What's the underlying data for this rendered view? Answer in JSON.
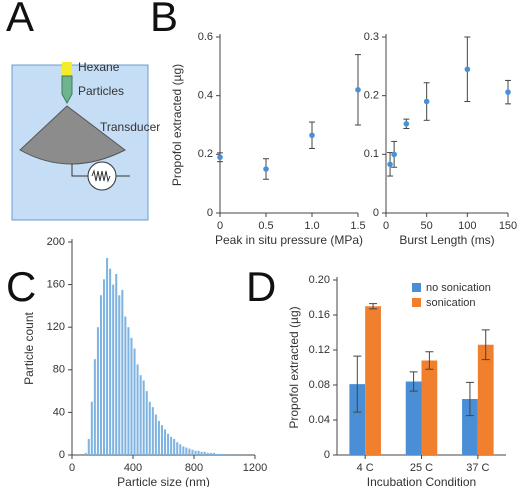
{
  "diagram": {
    "label": "A",
    "labels": [
      "Hexane",
      "Particles",
      "Transducer"
    ]
  },
  "chart_data": [
    {
      "type": "scatter",
      "label": "B",
      "ylabel": "Propofol extracted (µg)",
      "xlabel": "Peak in situ pressure (MPa)",
      "x": [
        0,
        0.5,
        1,
        1.5
      ],
      "values": [
        0.19,
        0.15,
        0.265,
        0.42
      ],
      "errors": [
        0.015,
        0.035,
        0.045,
        0.12
      ],
      "color": "#4a90d9",
      "xlim": [
        0,
        1.5
      ],
      "xticks": [
        0,
        0.5,
        {
          "value": 1,
          "label": "1.0"
        },
        1.5
      ],
      "ylim": [
        0,
        0.6
      ],
      "yticks": [
        0,
        0.2,
        0.4,
        0.6
      ]
    },
    {
      "type": "scatter",
      "xlabel": "Burst Length (ms)",
      "x": [
        5,
        10,
        25,
        50,
        100,
        150
      ],
      "values": [
        0.083,
        0.1,
        0.152,
        0.19,
        0.245,
        0.206
      ],
      "errors": [
        0.02,
        0.022,
        0.008,
        0.032,
        0.055,
        0.02
      ],
      "color": "#4a90d9",
      "xlim": [
        0,
        150
      ],
      "xticks": [
        0,
        50,
        100,
        150
      ],
      "ylim": [
        0,
        0.3
      ],
      "yticks": [
        0,
        0.1,
        0.2,
        0.3
      ]
    },
    {
      "type": "histogram",
      "label": "C",
      "ylabel": "Particle count",
      "xlabel": "Particle size (nm)",
      "bins": [
        0,
        20,
        40,
        60,
        80,
        100,
        120,
        140,
        160,
        180,
        200,
        220,
        240,
        260,
        280,
        300,
        320,
        340,
        360,
        380,
        400,
        420,
        440,
        460,
        480,
        500,
        520,
        540,
        560,
        580,
        600,
        620,
        640,
        660,
        680,
        700,
        720,
        740,
        760,
        780,
        800,
        820,
        840,
        860,
        880,
        900,
        920,
        940,
        960,
        980,
        1000,
        1020,
        1040,
        1060,
        1080,
        1100,
        1120,
        1140,
        1160,
        1180,
        1200
      ],
      "values": [
        0,
        0,
        0,
        0,
        2,
        15,
        50,
        90,
        120,
        150,
        165,
        185,
        175,
        160,
        170,
        150,
        155,
        130,
        120,
        110,
        100,
        85,
        75,
        70,
        60,
        50,
        45,
        38,
        32,
        28,
        24,
        20,
        17,
        15,
        12,
        10,
        8,
        7,
        6,
        5,
        4,
        4,
        3,
        3,
        2,
        2,
        2,
        1,
        1,
        1,
        1,
        1,
        0,
        1,
        0,
        0,
        1,
        0,
        0,
        0
      ],
      "color": "#7fb4e2",
      "xlim": [
        0,
        1200
      ],
      "xticks": [
        0,
        400,
        800,
        1200
      ],
      "ylim": [
        0,
        200
      ],
      "yticks": [
        0,
        40,
        80,
        120,
        160,
        200
      ]
    },
    {
      "type": "bar",
      "label": "D",
      "ylabel": "Propofol extracted (µg)",
      "xlabel": "Incubation Condition",
      "categories": [
        "4 C",
        "25 C",
        "37 C"
      ],
      "series": [
        {
          "name": "no sonication",
          "color": "#4a8fd6",
          "values": [
            0.081,
            0.084,
            0.064
          ],
          "errors": [
            0.032,
            0.011,
            0.019
          ]
        },
        {
          "name": "sonication",
          "color": "#f07f2e",
          "values": [
            0.17,
            0.108,
            0.126
          ],
          "errors": [
            0.003,
            0.01,
            0.017
          ]
        }
      ],
      "ylim": [
        0,
        0.2
      ],
      "yticks": [
        0,
        0.04,
        0.08,
        0.12,
        0.16,
        {
          "value": 0.2,
          "label": "0.20"
        }
      ],
      "legend": "top-right"
    }
  ]
}
